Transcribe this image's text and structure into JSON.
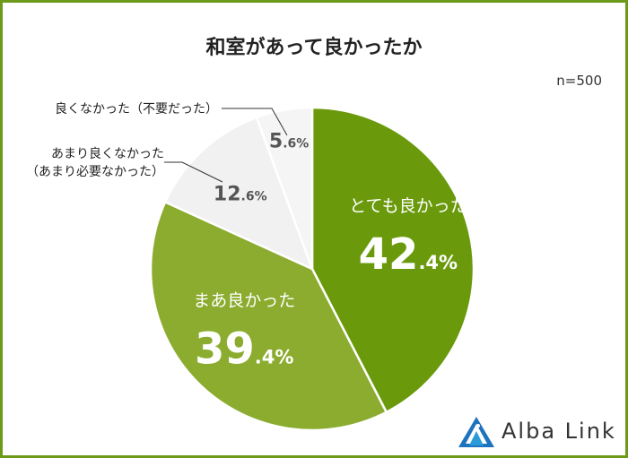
{
  "title": "和室があって良かったか",
  "sample_size": "n=500",
  "brand": {
    "name": "Alba Link",
    "colors": {
      "primary": "#6a9a0c",
      "light": "#8bac2f",
      "grey": "#f1f1f1",
      "grey2": "#f5f5f5",
      "border": "#6e9a1a"
    }
  },
  "chart_data": {
    "type": "pie",
    "start_angle_deg": 0,
    "direction": "clockwise",
    "slices": [
      {
        "label": "とても良かった",
        "value": 42.4,
        "int": "42",
        "dec": ".4%",
        "color": "#6a9a0c",
        "label_position": "inside"
      },
      {
        "label": "まあ良かった",
        "value": 39.4,
        "int": "39",
        "dec": ".4%",
        "color": "#8bac2f",
        "label_position": "inside"
      },
      {
        "label": "あまり良くなかった\n（あまり必要なかった）",
        "label_lines": [
          "あまり良くなかった",
          "（あまり必要なかった）"
        ],
        "value": 12.6,
        "int": "12",
        "dec": ".6%",
        "color": "#f1f1f1",
        "label_position": "outside"
      },
      {
        "label": "良くなかった（不要だった）",
        "label_lines": [
          "良くなかった（不要だった）"
        ],
        "value": 5.6,
        "int": "5",
        "dec": ".6%",
        "color": "#f5f5f5",
        "label_position": "outside"
      }
    ]
  }
}
